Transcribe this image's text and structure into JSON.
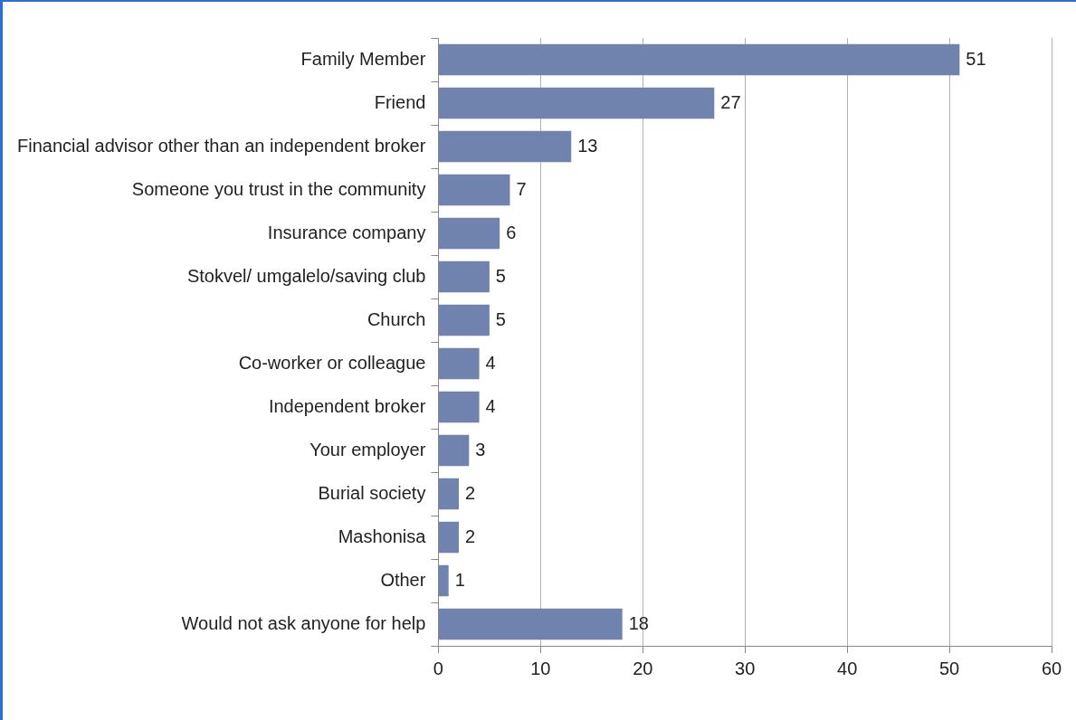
{
  "chart_data": {
    "type": "bar",
    "orientation": "horizontal",
    "categories": [
      "Family Member",
      "Friend",
      "Financial advisor other than an independent broker",
      "Someone you trust in the community",
      "Insurance company",
      "Stokvel/ umgalelo/saving club",
      "Church",
      "Co-worker or colleague",
      "Independent broker",
      "Your employer",
      "Burial society",
      "Mashonisa",
      "Other",
      "Would not ask anyone for help"
    ],
    "values": [
      51,
      27,
      13,
      7,
      6,
      5,
      5,
      4,
      4,
      3,
      2,
      2,
      1,
      18
    ],
    "color": "#7083ae",
    "xlim": [
      0,
      60
    ],
    "xticks": [
      0,
      10,
      20,
      30,
      40,
      50,
      60
    ],
    "grid": "x",
    "legend": false,
    "data_labels": true
  }
}
